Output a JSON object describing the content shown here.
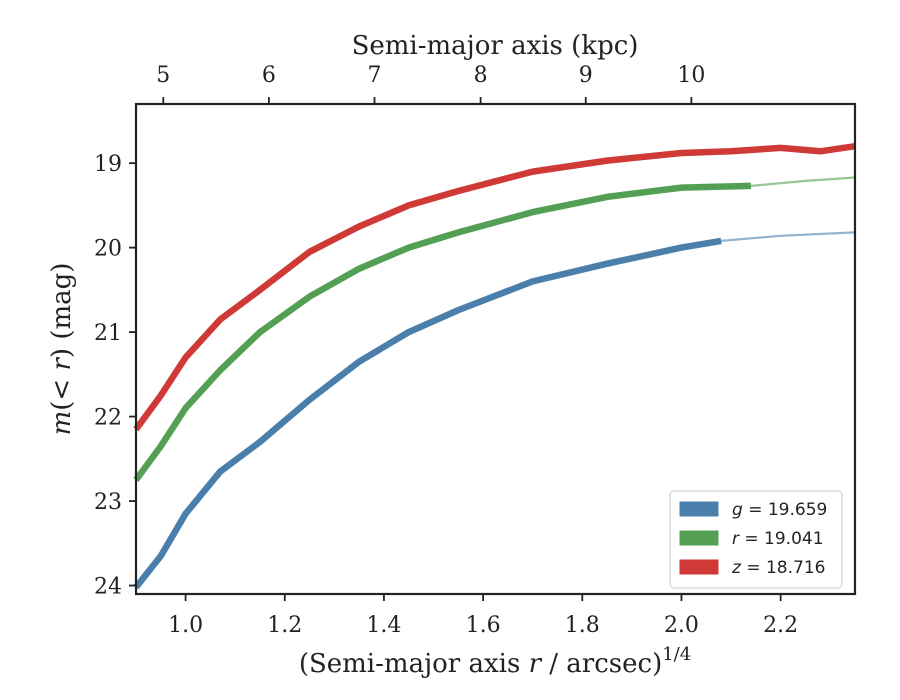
{
  "chart_data": {
    "type": "line",
    "top_axis": {
      "label": "Semi-major axis (kpc)",
      "ticks": [
        5,
        6,
        7,
        8,
        9,
        10
      ],
      "tick_x_positions": [
        0.955,
        1.168,
        1.381,
        1.595,
        1.807,
        2.02
      ]
    },
    "x_axis": {
      "label_prefix": "(Semi-major axis ",
      "label_var": "r",
      "label_mid": " / arcsec)",
      "label_sup": "1/4",
      "range": [
        0.9,
        2.35
      ],
      "ticks": [
        1.0,
        1.2,
        1.4,
        1.6,
        1.8,
        2.0,
        2.2
      ]
    },
    "y_axis": {
      "label_var": "m",
      "label_mid": "(< ",
      "label_var2": "r",
      "label_end": ") (mag)",
      "range": [
        24.1,
        18.3
      ],
      "inverted": true,
      "ticks": [
        19,
        20,
        21,
        22,
        23,
        24
      ]
    },
    "series": [
      {
        "name": "g",
        "legend_var": "g",
        "legend_value": "= 19.659",
        "color": "#4b7fab",
        "x": [
          0.9,
          0.95,
          1.0,
          1.07,
          1.15,
          1.25,
          1.35,
          1.45,
          1.55,
          1.7,
          1.85,
          2.0,
          2.08
        ],
        "y": [
          24.02,
          23.65,
          23.15,
          22.65,
          22.3,
          21.8,
          21.35,
          21.0,
          20.74,
          20.4,
          20.19,
          20.0,
          19.92
        ],
        "model_x": [
          2.08,
          2.2,
          2.35
        ],
        "model_y": [
          19.92,
          19.86,
          19.82
        ]
      },
      {
        "name": "r",
        "legend_var": "r",
        "legend_value": "= 19.041",
        "color": "#53a054",
        "x": [
          0.9,
          0.95,
          1.0,
          1.07,
          1.15,
          1.25,
          1.35,
          1.45,
          1.55,
          1.7,
          1.85,
          2.0,
          2.14
        ],
        "y": [
          22.75,
          22.35,
          21.9,
          21.45,
          21.0,
          20.58,
          20.25,
          20.0,
          19.82,
          19.58,
          19.4,
          19.29,
          19.27
        ],
        "model_x": [
          2.14,
          2.25,
          2.35
        ],
        "model_y": [
          19.27,
          19.21,
          19.17
        ]
      },
      {
        "name": "z",
        "legend_var": "z",
        "legend_value": "= 18.716",
        "color": "#d03a36",
        "x": [
          0.9,
          0.95,
          1.0,
          1.07,
          1.15,
          1.25,
          1.35,
          1.45,
          1.55,
          1.7,
          1.85,
          2.0,
          2.1,
          2.2,
          2.28,
          2.35
        ],
        "y": [
          22.15,
          21.75,
          21.3,
          20.85,
          20.5,
          20.05,
          19.75,
          19.5,
          19.33,
          19.1,
          18.97,
          18.88,
          18.86,
          18.82,
          18.86,
          18.8
        ]
      }
    ],
    "legend_position": "bottom-right"
  }
}
